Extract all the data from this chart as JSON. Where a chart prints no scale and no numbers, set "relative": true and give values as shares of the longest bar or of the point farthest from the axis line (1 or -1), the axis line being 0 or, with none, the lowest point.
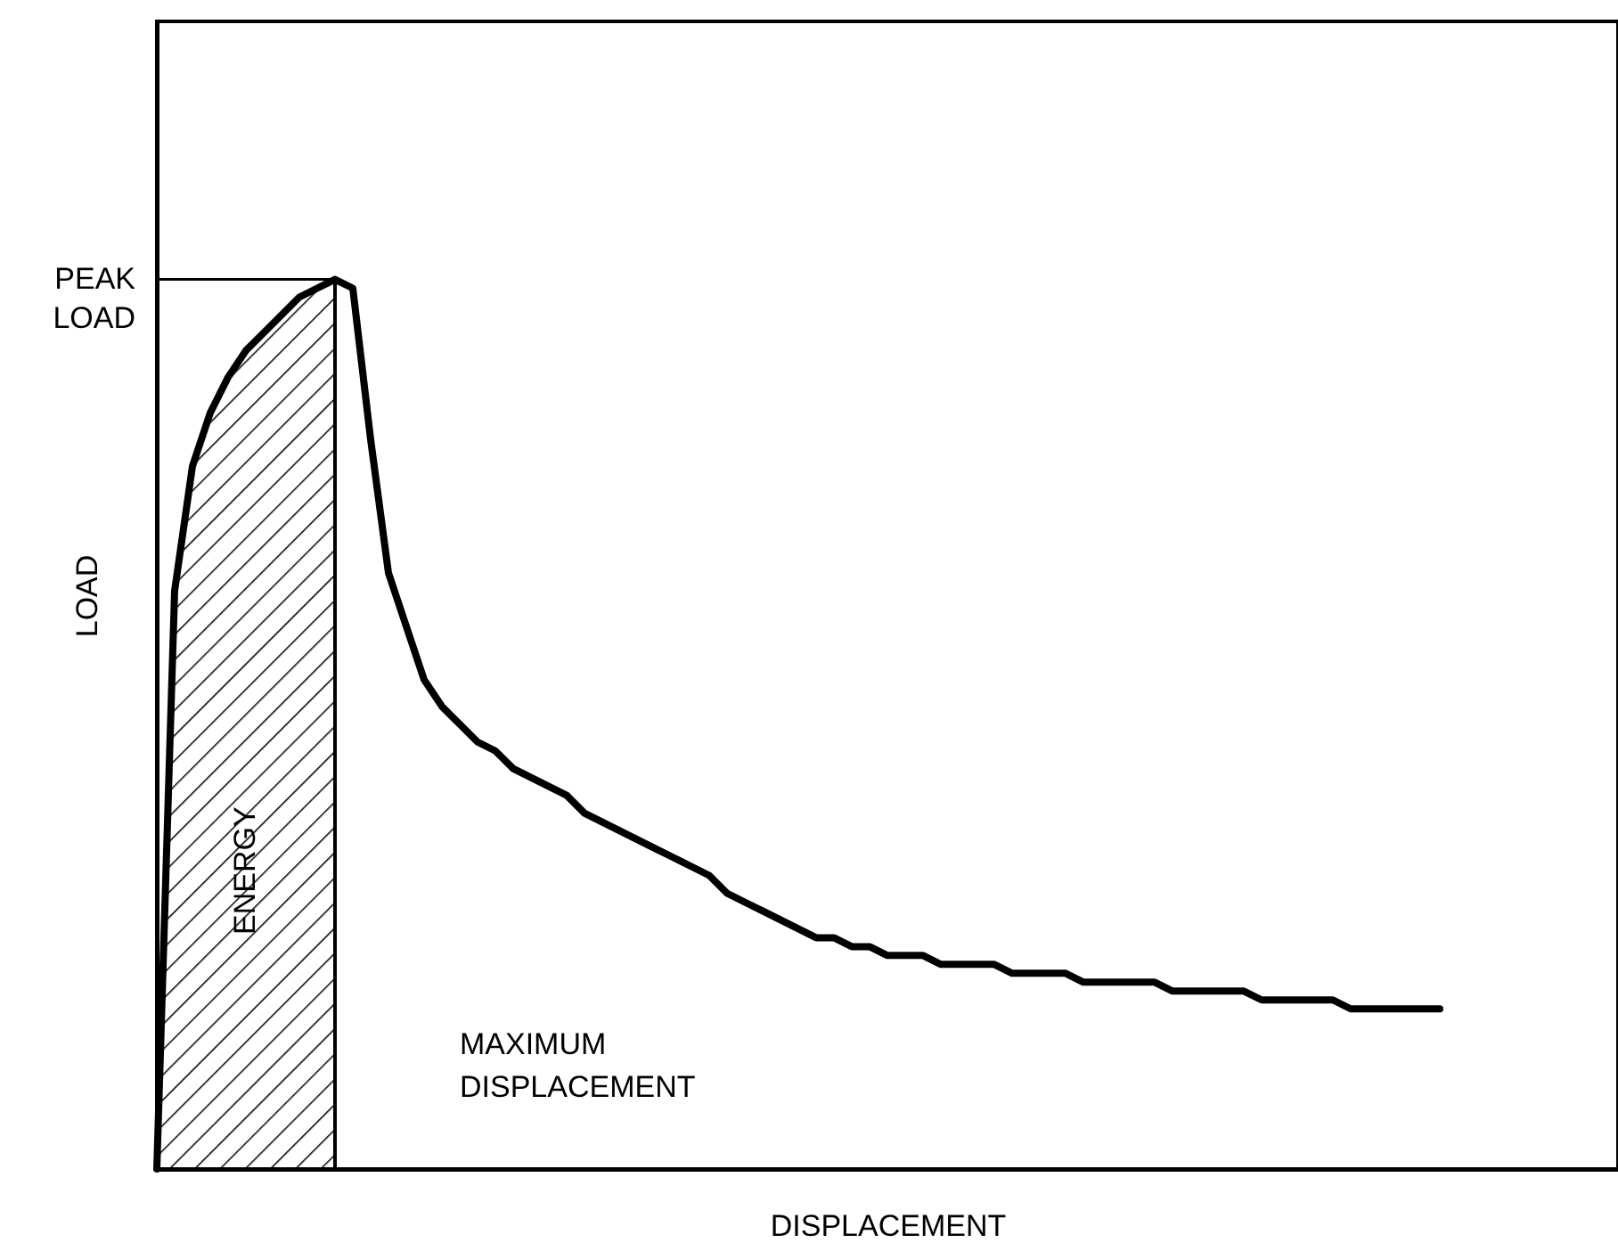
{
  "chart_data": {
    "type": "line",
    "relative": true,
    "xlabel": "DISPLACEMENT",
    "ylabel": "LOAD",
    "categories": [
      null,
      null,
      null,
      null,
      null,
      null,
      null,
      null,
      null,
      null,
      null,
      null,
      null,
      null,
      null,
      null,
      null,
      null,
      null,
      null,
      null,
      null,
      null,
      null,
      null,
      null,
      null,
      null,
      null,
      null,
      null,
      null,
      null,
      null,
      null,
      null,
      null,
      null,
      null,
      null,
      null,
      null,
      null,
      null,
      null,
      null,
      null,
      null,
      null,
      null,
      null,
      null,
      null,
      null,
      null,
      null,
      null,
      null,
      null,
      null,
      null,
      null,
      null,
      null,
      null,
      null,
      null,
      null,
      null,
      null,
      null,
      null,
      null,
      null,
      null,
      null,
      null,
      null,
      null,
      null,
      null,
      null,
      null
    ],
    "series": [
      {
        "type": "area",
        "color": "#000000",
        "values": [
          0,
          0.65,
          0.79,
          0.85,
          0.89,
          0.92,
          0.94,
          0.96,
          0.98,
          0.99,
          1,
          null,
          null,
          null,
          null,
          null,
          null,
          null,
          null,
          null,
          null,
          null,
          null,
          null,
          null,
          null,
          null,
          null,
          null,
          null,
          null,
          null,
          null,
          null,
          null,
          null,
          null,
          null,
          null,
          null,
          null,
          null,
          null,
          null,
          null,
          null,
          null,
          null,
          null,
          null,
          null,
          null,
          null,
          null,
          null,
          null,
          null,
          null,
          null,
          null,
          null,
          null,
          null,
          null,
          null,
          null,
          null,
          null,
          null,
          null,
          null,
          null,
          null,
          null,
          null,
          null,
          null,
          null,
          null,
          null,
          null,
          null,
          null
        ]
      },
      {
        "color": "#000000",
        "values": [
          0,
          0.65,
          0.79,
          0.85,
          0.89,
          0.92,
          0.94,
          0.96,
          0.98,
          0.99,
          1,
          0.99,
          0.82,
          0.67,
          0.61,
          0.55,
          0.52,
          0.5,
          0.48,
          0.47,
          0.45,
          0.44,
          0.43,
          0.42,
          0.4,
          0.39,
          0.38,
          0.37,
          0.36,
          0.35,
          0.34,
          0.33,
          0.31,
          0.3,
          0.29,
          0.28,
          0.27,
          0.26,
          0.26,
          0.25,
          0.25,
          0.24,
          0.24,
          0.24,
          0.23,
          0.23,
          0.23,
          0.23,
          0.22,
          0.22,
          0.22,
          0.22,
          0.21,
          0.21,
          0.21,
          0.21,
          0.21,
          0.2,
          0.2,
          0.2,
          0.2,
          0.2,
          0.19,
          0.19,
          0.19,
          0.19,
          0.19,
          0.18,
          0.18,
          0.18,
          0.18,
          0.18,
          0.18,
          null,
          null,
          null,
          null,
          null,
          null,
          null,
          null,
          null,
          null
        ]
      }
    ],
    "ref_lines": [
      {
        "axis": "y",
        "value": 1,
        "label": "PEAK LOAD"
      }
    ],
    "annotations": [
      "ENERGY",
      "MAXIMUM DISPLACEMENT"
    ],
    "grid": false,
    "marker": "none",
    "line_style": "solid"
  }
}
